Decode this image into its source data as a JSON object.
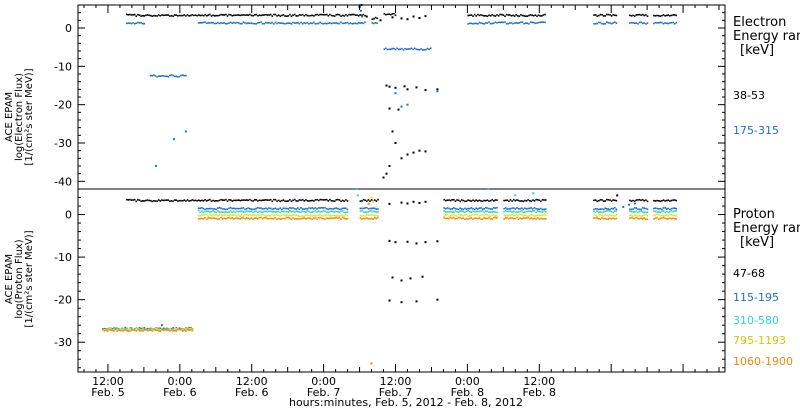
{
  "chart_data": [
    {
      "type": "scatter",
      "panel": "electron",
      "ylabel": [
        "ACE EPAM",
        "log(Electron Flux)",
        "[1/(cm²s ster MeV)]"
      ],
      "ylim": [
        -42,
        6
      ],
      "yticks": [
        0,
        -10,
        -20,
        -30,
        -40
      ],
      "legend_title": [
        "Electron",
        "Energy range",
        "[keV]"
      ],
      "series": [
        {
          "name": "38-53",
          "color": "#000000",
          "segments": [
            [
              3.0,
              43.0,
              3.3
            ],
            [
              44.0,
              45.0,
              2.5
            ],
            [
              46.0,
              48.0,
              3.5
            ],
            [
              60.0,
              73.0,
              3.3
            ],
            [
              81.0,
              85.0,
              3.3
            ],
            [
              87.0,
              90.0,
              3.3
            ],
            [
              91.0,
              95.0,
              3.3
            ]
          ],
          "points": [
            [
              42.0,
              5.5
            ],
            [
              42.3,
              6.0
            ],
            [
              43.2,
              3.0
            ],
            [
              45.5,
              2.0
            ],
            [
              47.5,
              2.8
            ],
            [
              49.0,
              2.5
            ],
            [
              50.0,
              2.3
            ],
            [
              51.0,
              3.0
            ],
            [
              52.0,
              2.6
            ],
            [
              53.0,
              3.1
            ],
            [
              46.5,
              -15.0
            ],
            [
              47.0,
              -15.3
            ],
            [
              48.0,
              -15.6
            ],
            [
              49.5,
              -15.2
            ],
            [
              50.0,
              -16.0
            ],
            [
              51.5,
              -15.5
            ],
            [
              53.0,
              -16.2
            ],
            [
              55.0,
              -16.0
            ],
            [
              47.0,
              -21.0
            ],
            [
              48.5,
              -21.3
            ],
            [
              47.5,
              -27.0
            ],
            [
              48.0,
              -30.0
            ],
            [
              49.0,
              -34.0
            ],
            [
              50.0,
              -33.0
            ],
            [
              51.0,
              -32.5
            ],
            [
              52.0,
              -32.0
            ],
            [
              53.0,
              -32.2
            ],
            [
              46.0,
              -39.0
            ],
            [
              46.5,
              -38.0
            ],
            [
              47.0,
              -36.0
            ]
          ]
        },
        {
          "name": "175-315",
          "color": "#1e6fc4",
          "segments": [
            [
              3.0,
              6.0,
              1.3
            ],
            [
              7.0,
              13.0,
              -12.5
            ],
            [
              15.0,
              43.0,
              1.3
            ],
            [
              44.0,
              45.0,
              1.2
            ],
            [
              46.0,
              54.0,
              -5.5
            ],
            [
              60.0,
              73.0,
              1.3
            ],
            [
              81.0,
              85.0,
              1.3
            ],
            [
              87.0,
              90.0,
              1.3
            ],
            [
              91.0,
              95.0,
              1.3
            ]
          ],
          "points": [
            [
              8.0,
              -36.0
            ],
            [
              11.0,
              -29.0
            ],
            [
              13.0,
              -27.0
            ],
            [
              42.0,
              6.0
            ],
            [
              42.2,
              4.5
            ],
            [
              42.4,
              3.0
            ],
            [
              48.0,
              -17.0
            ],
            [
              49.0,
              -20.5
            ],
            [
              50.0,
              -20.0
            ],
            [
              55.0,
              -16.5
            ]
          ]
        }
      ]
    },
    {
      "type": "scatter",
      "panel": "proton",
      "ylabel": [
        "ACE EPAM",
        "log(Proton Flux)",
        "[1/(cm²s ster MeV)]"
      ],
      "ylim": [
        -37,
        6
      ],
      "yticks": [
        0,
        -10,
        -20,
        -30
      ],
      "legend_title": [
        "Proton",
        "Energy range",
        "[keV]"
      ],
      "series": [
        {
          "name": "47-68",
          "color": "#000000",
          "segments": [
            [
              3.0,
              40.0,
              3.3
            ],
            [
              42.0,
              45.0,
              3.3
            ],
            [
              56.0,
              65.0,
              3.3
            ],
            [
              66.0,
              73.0,
              3.3
            ],
            [
              81.0,
              85.0,
              3.3
            ],
            [
              87.0,
              90.0,
              3.3
            ],
            [
              91.0,
              95.0,
              3.3
            ]
          ],
          "points": [
            [
              47.0,
              2.5
            ],
            [
              49.0,
              2.8
            ],
            [
              50.0,
              2.6
            ],
            [
              51.0,
              3.0
            ],
            [
              52.0,
              2.7
            ],
            [
              53.0,
              3.0
            ],
            [
              47.0,
              -6.2
            ],
            [
              48.0,
              -6.5
            ],
            [
              50.0,
              -6.4
            ],
            [
              51.5,
              -6.8
            ],
            [
              53.0,
              -6.5
            ],
            [
              55.0,
              -6.3
            ],
            [
              47.5,
              -14.8
            ],
            [
              49.0,
              -15.5
            ],
            [
              50.5,
              -15.0
            ],
            [
              52.5,
              -14.6
            ],
            [
              47.0,
              -20.2
            ],
            [
              49.0,
              -20.6
            ],
            [
              51.5,
              -20.4
            ],
            [
              55.0,
              -20.0
            ],
            [
              85.0,
              4.5
            ]
          ]
        },
        {
          "name": "115-195",
          "color": "#1e6fc4",
          "segments": [
            [
              -1.0,
              14.0,
              -26.8
            ],
            [
              15.0,
              40.0,
              1.4
            ],
            [
              42.0,
              45.0,
              1.4
            ],
            [
              56.0,
              65.0,
              1.4
            ],
            [
              66.0,
              73.0,
              1.4
            ],
            [
              81.0,
              85.0,
              1.4
            ],
            [
              87.0,
              90.0,
              1.4
            ],
            [
              91.0,
              95.0,
              1.4
            ]
          ],
          "points": [
            [
              9.0,
              -26.0
            ],
            [
              86.0,
              1.8
            ],
            [
              87.0,
              2.3
            ],
            [
              88.0,
              2.6
            ]
          ]
        },
        {
          "name": "310-580",
          "color": "#2ecfd9",
          "segments": [
            [
              -1.0,
              14.0,
              -26.9
            ],
            [
              15.0,
              40.0,
              0.7
            ],
            [
              42.0,
              45.0,
              0.7
            ],
            [
              56.0,
              65.0,
              0.7
            ],
            [
              66.0,
              73.0,
              0.7
            ],
            [
              81.0,
              85.0,
              0.7
            ],
            [
              87.0,
              90.0,
              0.7
            ],
            [
              91.0,
              95.0,
              0.7
            ]
          ],
          "points": [
            [
              41.5,
              6.0
            ],
            [
              41.7,
              4.5
            ],
            [
              63.5,
              6.0
            ],
            [
              68.0,
              4.5
            ],
            [
              71.0,
              5.0
            ]
          ]
        },
        {
          "name": "795-1193",
          "color": "#e5e51f",
          "segments": [
            [
              -1.0,
              14.0,
              -27.0
            ],
            [
              15.0,
              40.0,
              -0.2
            ],
            [
              42.0,
              45.0,
              -0.2
            ],
            [
              56.0,
              65.0,
              -0.2
            ],
            [
              66.0,
              73.0,
              -0.2
            ],
            [
              81.0,
              85.0,
              -0.2
            ],
            [
              87.0,
              90.0,
              -0.2
            ],
            [
              91.0,
              95.0,
              -0.2
            ]
          ],
          "points": [
            [
              44.0,
              4.0
            ],
            [
              44.3,
              3.0
            ]
          ]
        },
        {
          "name": "1060-1900",
          "color": "#ef8a10",
          "segments": [
            [
              -1.0,
              14.0,
              -27.2
            ],
            [
              15.0,
              40.0,
              -0.9
            ],
            [
              42.0,
              45.0,
              -0.9
            ],
            [
              56.0,
              65.0,
              -0.9
            ],
            [
              66.0,
              73.0,
              -0.9
            ],
            [
              81.0,
              85.0,
              -0.9
            ],
            [
              87.0,
              90.0,
              -0.9
            ],
            [
              91.0,
              95.0,
              -0.9
            ]
          ],
          "points": [
            [
              44.0,
              -35.0
            ],
            [
              43.5,
              2.5
            ]
          ]
        }
      ]
    }
  ],
  "x_axis": {
    "xlim": [
      -5,
      103
    ],
    "major_ticks": [
      {
        "hours": 0,
        "time": "12:00",
        "day": "Feb. 5"
      },
      {
        "hours": 12,
        "time": "0:00",
        "day": "Feb. 6"
      },
      {
        "hours": 24,
        "time": "12:00",
        "day": "Feb. 6"
      },
      {
        "hours": 36,
        "time": "0:00",
        "day": "Feb. 7"
      },
      {
        "hours": 48,
        "time": "12:00",
        "day": "Feb. 7"
      },
      {
        "hours": 60,
        "time": "0:00",
        "day": "Feb. 8"
      },
      {
        "hours": 72,
        "time": "12:00",
        "day": "Feb. 8"
      }
    ],
    "xlabel": "hours:minutes, Feb.  5, 2012 - Feb.  8, 2012"
  }
}
